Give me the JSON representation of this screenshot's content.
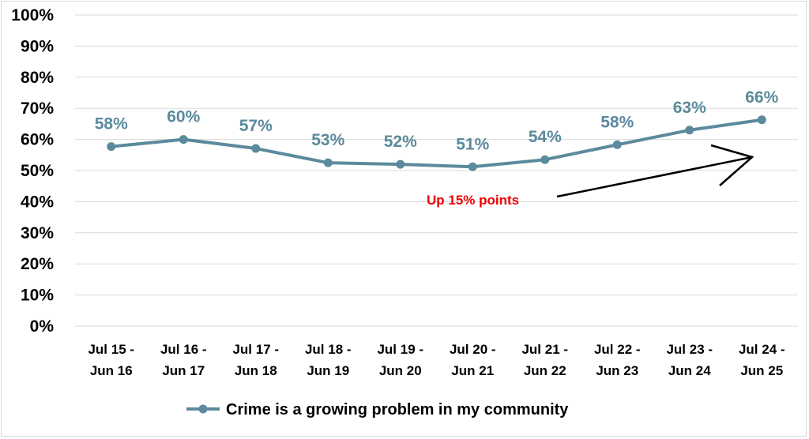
{
  "chart_data": {
    "type": "line",
    "categories": [
      [
        "Jul 15 -",
        "Jun 16"
      ],
      [
        "Jul 16 -",
        "Jun 17"
      ],
      [
        "Jul 17 -",
        "Jun 18"
      ],
      [
        "Jul 18 -",
        "Jun 19"
      ],
      [
        "Jul 19 -",
        "Jun 20"
      ],
      [
        "Jul 20 -",
        "Jun 21"
      ],
      [
        "Jul 21 -",
        "Jun 22"
      ],
      [
        "Jul 22 -",
        "Jun 23"
      ],
      [
        "Jul 23 -",
        "Jun 24"
      ],
      [
        "Jul 24 -",
        "Jun 25"
      ]
    ],
    "series": [
      {
        "name": "Crime is a growing problem in my community",
        "values": [
          0.577,
          0.6,
          0.571,
          0.525,
          0.52,
          0.512,
          0.535,
          0.583,
          0.63,
          0.663
        ],
        "data_labels": [
          "58%",
          "60%",
          "57%",
          "53%",
          "52%",
          "51%",
          "54%",
          "58%",
          "63%",
          "66%"
        ],
        "color": "#5b8a9c"
      }
    ],
    "ylim": [
      0,
      1
    ],
    "yticks": [
      "0%",
      "10%",
      "20%",
      "30%",
      "40%",
      "50%",
      "60%",
      "70%",
      "80%",
      "90%",
      "100%"
    ],
    "grid": true,
    "legend_position": "bottom",
    "annotations": [
      {
        "text": "Up 15% points",
        "color": "#ee0000",
        "arrow": true
      }
    ],
    "gridline_color": "#d9d9d9"
  }
}
